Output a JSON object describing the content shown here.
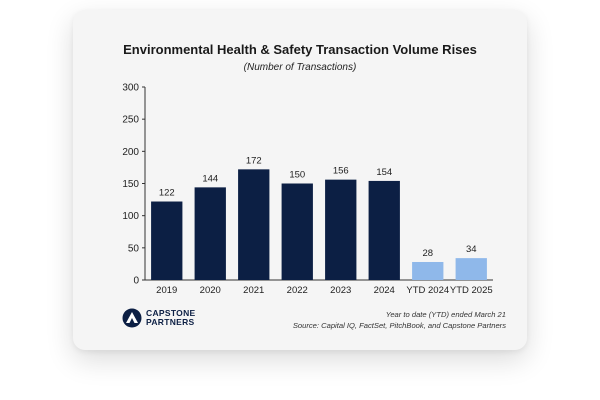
{
  "chart_data": {
    "type": "bar",
    "title": "Environmental Health & Safety Transaction Volume Rises",
    "subtitle": "(Number of Transactions)",
    "categories": [
      "2019",
      "2020",
      "2021",
      "2022",
      "2023",
      "2024",
      "YTD 2024",
      "YTD 2025"
    ],
    "values": [
      122,
      144,
      172,
      150,
      156,
      154,
      28,
      34
    ],
    "bar_colors": [
      "#0c1f44",
      "#0c1f44",
      "#0c1f44",
      "#0c1f44",
      "#0c1f44",
      "#0c1f44",
      "#8fb8ea",
      "#8fb8ea"
    ],
    "ylim": [
      0,
      300
    ],
    "yticks": [
      0,
      50,
      100,
      150,
      200,
      250,
      300
    ],
    "grid": false
  },
  "footnote": {
    "line1": "Year to date (YTD) ended March 21",
    "line2": "Source: Capital IQ, FactSet, PitchBook, and Capstone Partners"
  },
  "logo": {
    "line1": "CAPSTONE",
    "line2": "PARTNERS",
    "icon": "capstone-logo-icon"
  }
}
